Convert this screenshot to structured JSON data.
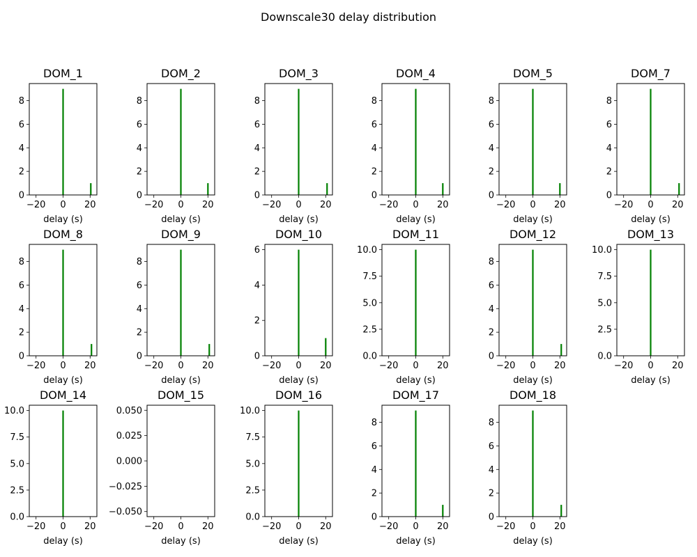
{
  "figure": {
    "title": "Downscale30 delay distribution",
    "bar_color": "#008000"
  },
  "chart_data": [
    {
      "type": "bar",
      "title": "DOM_1",
      "xlabel": "delay (s)",
      "xlim": [
        -25,
        25
      ],
      "xticks": [
        -20,
        0,
        20
      ],
      "ylim": [
        0,
        9.45
      ],
      "yticks": [
        0,
        2,
        4,
        6,
        8
      ],
      "ytick_labels": [
        "0",
        "2",
        "4",
        "6",
        "8"
      ],
      "bars": [
        {
          "x": 0,
          "value": 9
        },
        {
          "x": 20.5,
          "value": 1
        }
      ]
    },
    {
      "type": "bar",
      "title": "DOM_2",
      "xlabel": "delay (s)",
      "xlim": [
        -25,
        25
      ],
      "xticks": [
        -20,
        0,
        20
      ],
      "ylim": [
        0,
        9.45
      ],
      "yticks": [
        0,
        2,
        4,
        6,
        8
      ],
      "ytick_labels": [
        "0",
        "2",
        "4",
        "6",
        "8"
      ],
      "bars": [
        {
          "x": 0,
          "value": 9
        },
        {
          "x": 20,
          "value": 1
        }
      ]
    },
    {
      "type": "bar",
      "title": "DOM_3",
      "xlabel": "delay (s)",
      "xlim": [
        -25,
        25
      ],
      "xticks": [
        -20,
        0,
        20
      ],
      "ylim": [
        0,
        9.45
      ],
      "yticks": [
        0,
        2,
        4,
        6,
        8
      ],
      "ytick_labels": [
        "0",
        "2",
        "4",
        "6",
        "8"
      ],
      "bars": [
        {
          "x": 0,
          "value": 9
        },
        {
          "x": 21,
          "value": 1
        }
      ]
    },
    {
      "type": "bar",
      "title": "DOM_4",
      "xlabel": "delay (s)",
      "xlim": [
        -25,
        25
      ],
      "xticks": [
        -20,
        0,
        20
      ],
      "ylim": [
        0,
        9.45
      ],
      "yticks": [
        0,
        2,
        4,
        6,
        8
      ],
      "ytick_labels": [
        "0",
        "2",
        "4",
        "6",
        "8"
      ],
      "bars": [
        {
          "x": 0,
          "value": 9
        },
        {
          "x": 20,
          "value": 1
        }
      ]
    },
    {
      "type": "bar",
      "title": "DOM_5",
      "xlabel": "delay (s)",
      "xlim": [
        -25,
        25
      ],
      "xticks": [
        -20,
        0,
        20
      ],
      "ylim": [
        0,
        9.45
      ],
      "yticks": [
        0,
        2,
        4,
        6,
        8
      ],
      "ytick_labels": [
        "0",
        "2",
        "4",
        "6",
        "8"
      ],
      "bars": [
        {
          "x": 0,
          "value": 9
        },
        {
          "x": 20,
          "value": 1
        }
      ]
    },
    {
      "type": "bar",
      "title": "DOM_7",
      "xlabel": "delay (s)",
      "xlim": [
        -25,
        25
      ],
      "xticks": [
        -20,
        0,
        20
      ],
      "ylim": [
        0,
        9.45
      ],
      "yticks": [
        0,
        2,
        4,
        6,
        8
      ],
      "ytick_labels": [
        "0",
        "2",
        "4",
        "6",
        "8"
      ],
      "bars": [
        {
          "x": 0,
          "value": 9
        },
        {
          "x": 21,
          "value": 1
        }
      ]
    },
    {
      "type": "bar",
      "title": "DOM_8",
      "xlabel": "delay (s)",
      "xlim": [
        -25,
        25
      ],
      "xticks": [
        -20,
        0,
        20
      ],
      "ylim": [
        0,
        9.45
      ],
      "yticks": [
        0,
        2,
        4,
        6,
        8
      ],
      "ytick_labels": [
        "0",
        "2",
        "4",
        "6",
        "8"
      ],
      "bars": [
        {
          "x": 0,
          "value": 9
        },
        {
          "x": 21,
          "value": 1
        }
      ]
    },
    {
      "type": "bar",
      "title": "DOM_9",
      "xlabel": "delay (s)",
      "xlim": [
        -25,
        25
      ],
      "xticks": [
        -20,
        0,
        20
      ],
      "ylim": [
        0,
        9.45
      ],
      "yticks": [
        0,
        2,
        4,
        6,
        8
      ],
      "ytick_labels": [
        "0",
        "2",
        "4",
        "6",
        "8"
      ],
      "bars": [
        {
          "x": 0,
          "value": 9
        },
        {
          "x": 21,
          "value": 1
        }
      ]
    },
    {
      "type": "bar",
      "title": "DOM_10",
      "xlabel": "delay (s)",
      "xlim": [
        -25,
        25
      ],
      "xticks": [
        -20,
        0,
        20
      ],
      "ylim": [
        0,
        6.3
      ],
      "yticks": [
        0,
        2,
        4,
        6
      ],
      "ytick_labels": [
        "0",
        "2",
        "4",
        "6"
      ],
      "bars": [
        {
          "x": 0,
          "value": 6
        },
        {
          "x": 20,
          "value": 1
        }
      ]
    },
    {
      "type": "bar",
      "title": "DOM_11",
      "xlabel": "delay (s)",
      "xlim": [
        -25,
        25
      ],
      "xticks": [
        -20,
        0,
        20
      ],
      "ylim": [
        0,
        10.5
      ],
      "yticks": [
        0,
        2.5,
        5,
        7.5,
        10
      ],
      "ytick_labels": [
        "0.0",
        "2.5",
        "5.0",
        "7.5",
        "10.0"
      ],
      "bars": [
        {
          "x": 0,
          "value": 10
        }
      ]
    },
    {
      "type": "bar",
      "title": "DOM_12",
      "xlabel": "delay (s)",
      "xlim": [
        -25,
        25
      ],
      "xticks": [
        -20,
        0,
        20
      ],
      "ylim": [
        0,
        9.45
      ],
      "yticks": [
        0,
        2,
        4,
        6,
        8
      ],
      "ytick_labels": [
        "0",
        "2",
        "4",
        "6",
        "8"
      ],
      "bars": [
        {
          "x": 0,
          "value": 9
        },
        {
          "x": 21,
          "value": 1
        }
      ]
    },
    {
      "type": "bar",
      "title": "DOM_13",
      "xlabel": "delay (s)",
      "xlim": [
        -25,
        25
      ],
      "xticks": [
        -20,
        0,
        20
      ],
      "ylim": [
        0,
        10.5
      ],
      "yticks": [
        0,
        2.5,
        5,
        7.5,
        10
      ],
      "ytick_labels": [
        "0.0",
        "2.5",
        "5.0",
        "7.5",
        "10.0"
      ],
      "bars": [
        {
          "x": 0,
          "value": 10
        }
      ]
    },
    {
      "type": "bar",
      "title": "DOM_14",
      "xlabel": "delay (s)",
      "xlim": [
        -25,
        25
      ],
      "xticks": [
        -20,
        0,
        20
      ],
      "ylim": [
        0,
        10.5
      ],
      "yticks": [
        0,
        2.5,
        5,
        7.5,
        10
      ],
      "ytick_labels": [
        "0.0",
        "2.5",
        "5.0",
        "7.5",
        "10.0"
      ],
      "bars": [
        {
          "x": 0,
          "value": 10
        }
      ]
    },
    {
      "type": "bar",
      "title": "DOM_15",
      "xlabel": "delay (s)",
      "xlim": [
        -25,
        25
      ],
      "xticks": [
        -20,
        0,
        20
      ],
      "ylim": [
        -0.055,
        0.055
      ],
      "yticks": [
        -0.05,
        -0.025,
        0,
        0.025,
        0.05
      ],
      "ytick_labels": [
        "−0.050",
        "−0.025",
        "0.000",
        "0.025",
        "0.050"
      ],
      "bars": []
    },
    {
      "type": "bar",
      "title": "DOM_16",
      "xlabel": "delay (s)",
      "xlim": [
        -25,
        25
      ],
      "xticks": [
        -20,
        0,
        20
      ],
      "ylim": [
        0,
        10.5
      ],
      "yticks": [
        0,
        2.5,
        5,
        7.5,
        10
      ],
      "ytick_labels": [
        "0.0",
        "2.5",
        "5.0",
        "7.5",
        "10.0"
      ],
      "bars": [
        {
          "x": 0,
          "value": 10
        }
      ]
    },
    {
      "type": "bar",
      "title": "DOM_17",
      "xlabel": "delay (s)",
      "xlim": [
        -25,
        25
      ],
      "xticks": [
        -20,
        0,
        20
      ],
      "ylim": [
        0,
        9.45
      ],
      "yticks": [
        0,
        2,
        4,
        6,
        8
      ],
      "ytick_labels": [
        "0",
        "2",
        "4",
        "6",
        "8"
      ],
      "bars": [
        {
          "x": 0,
          "value": 9
        },
        {
          "x": 20,
          "value": 1
        }
      ]
    },
    {
      "type": "bar",
      "title": "DOM_18",
      "xlabel": "delay (s)",
      "xlim": [
        -25,
        25
      ],
      "xticks": [
        -20,
        0,
        20
      ],
      "ylim": [
        0,
        9.45
      ],
      "yticks": [
        0,
        2,
        4,
        6,
        8
      ],
      "ytick_labels": [
        "0",
        "2",
        "4",
        "6",
        "8"
      ],
      "bars": [
        {
          "x": 0,
          "value": 9
        },
        {
          "x": 21,
          "value": 1
        }
      ]
    }
  ]
}
